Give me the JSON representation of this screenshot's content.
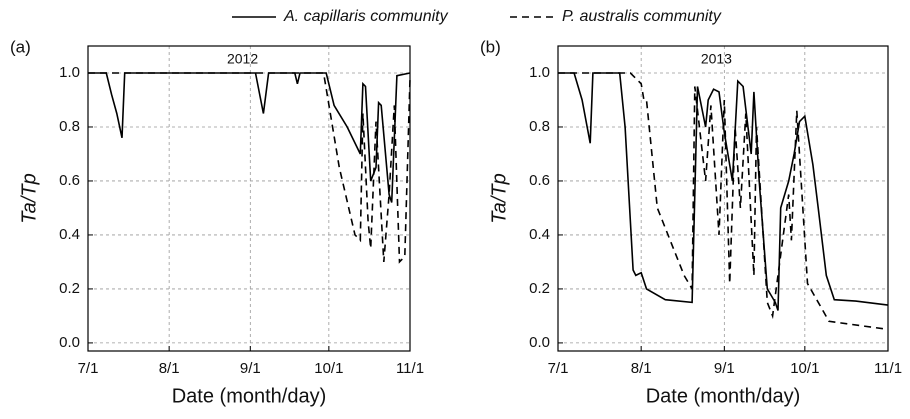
{
  "chart_data": [
    {
      "type": "line",
      "panel_label": "(a)",
      "annotation": "2012",
      "ylabel": "Ta/Tp",
      "xlabel": "Date (month/day)",
      "xlim": [
        "7/1",
        "11/1"
      ],
      "xticks": [
        "7/1",
        "8/1",
        "9/1",
        "10/1",
        "11/1"
      ],
      "ylim": [
        -0.03,
        1.1
      ],
      "yticks": [
        {
          "value": 0,
          "label": "0.0"
        },
        0.2,
        0.4,
        0.6,
        0.8,
        {
          "value": 1,
          "label": "1.0"
        }
      ],
      "grid": true,
      "series": [
        {
          "name": "A. capillaris community",
          "color": "#000000",
          "dash": "solid",
          "x": [
            "7/1",
            "7/8",
            "7/10",
            "7/12",
            "7/14",
            "7/15",
            "9/3",
            "9/6",
            "9/8",
            "9/18",
            "9/19",
            "9/20",
            "9/30",
            "10/3",
            "10/8",
            "10/13",
            "10/14",
            "10/15",
            "10/17",
            "10/19",
            "10/20",
            "10/21",
            "10/24",
            "10/25",
            "10/27",
            "11/1"
          ],
          "values": [
            1,
            1,
            0.92,
            0.85,
            0.76,
            1,
            1,
            0.85,
            1,
            1,
            0.96,
            1,
            1,
            0.88,
            0.8,
            0.7,
            0.96,
            0.95,
            0.6,
            0.65,
            0.89,
            0.88,
            0.55,
            0.52,
            0.99,
            1
          ]
        },
        {
          "name": "P. australis community",
          "color": "#000000",
          "dash": "dashed",
          "x": [
            "7/1",
            "9/29",
            "10/5",
            "10/11",
            "10/13",
            "10/14",
            "10/16",
            "10/17",
            "10/19",
            "10/22",
            "10/24",
            "10/26",
            "10/28",
            "10/30",
            "11/1"
          ],
          "values": [
            1,
            1,
            0.65,
            0.4,
            0.38,
            0.85,
            0.45,
            0.35,
            0.82,
            0.3,
            0.55,
            0.88,
            0.3,
            0.32,
            0.98
          ]
        }
      ]
    },
    {
      "type": "line",
      "panel_label": "(b)",
      "annotation": "2013",
      "ylabel": "Ta/Tp",
      "xlabel": "Date (month/day)",
      "xlim": [
        "7/1",
        "11/1"
      ],
      "xticks": [
        "7/1",
        "8/1",
        "9/1",
        "10/1",
        "11/1"
      ],
      "ylim": [
        -0.03,
        1.1
      ],
      "yticks": [
        {
          "value": 0,
          "label": "0.0"
        },
        0.2,
        0.4,
        0.6,
        0.8,
        {
          "value": 1,
          "label": "1.0"
        }
      ],
      "grid": true,
      "series": [
        {
          "color": "#000000",
          "dash": "solid",
          "x": [
            "7/1",
            "7/7",
            "7/10",
            "7/13",
            "7/14",
            "7/24",
            "7/26",
            "7/29",
            "7/30",
            "8/1",
            "8/3",
            "8/10",
            "8/20",
            "8/22",
            "8/25",
            "8/26",
            "8/28",
            "8/30",
            "9/1",
            "9/4",
            "9/6",
            "9/8",
            "9/11",
            "9/12",
            "9/14",
            "9/17",
            "9/20",
            "9/21",
            "9/22",
            "9/25",
            "9/27",
            "9/29",
            "10/1",
            "10/4",
            "10/6",
            "10/9",
            "10/12",
            "10/20",
            "11/1"
          ],
          "values": [
            1,
            1,
            0.9,
            0.74,
            1,
            1,
            0.8,
            0.27,
            0.25,
            0.26,
            0.2,
            0.16,
            0.15,
            0.95,
            0.8,
            0.9,
            0.94,
            0.93,
            0.78,
            0.6,
            0.97,
            0.95,
            0.7,
            0.93,
            0.6,
            0.2,
            0.15,
            0.12,
            0.5,
            0.6,
            0.7,
            0.82,
            0.84,
            0.66,
            0.5,
            0.25,
            0.16,
            0.155,
            0.14
          ]
        },
        {
          "color": "#000000",
          "dash": "dashed",
          "x": [
            "7/1",
            "7/28",
            "8/1",
            "8/2",
            "8/3",
            "8/7",
            "8/17",
            "8/20",
            "8/21",
            "8/25",
            "8/27",
            "8/30",
            "9/1",
            "9/3",
            "9/5",
            "9/7",
            "9/9",
            "9/12",
            "9/13",
            "9/17",
            "9/19",
            "9/25",
            "9/26",
            "9/28",
            "10/2",
            "10/10",
            "11/1"
          ],
          "values": [
            1,
            1,
            0.96,
            0.9,
            0.9,
            0.5,
            0.25,
            0.2,
            0.95,
            0.6,
            0.88,
            0.4,
            0.9,
            0.22,
            0.8,
            0.5,
            0.85,
            0.25,
            0.8,
            0.15,
            0.1,
            0.55,
            0.38,
            0.86,
            0.22,
            0.08,
            0.05
          ]
        }
      ]
    }
  ]
}
